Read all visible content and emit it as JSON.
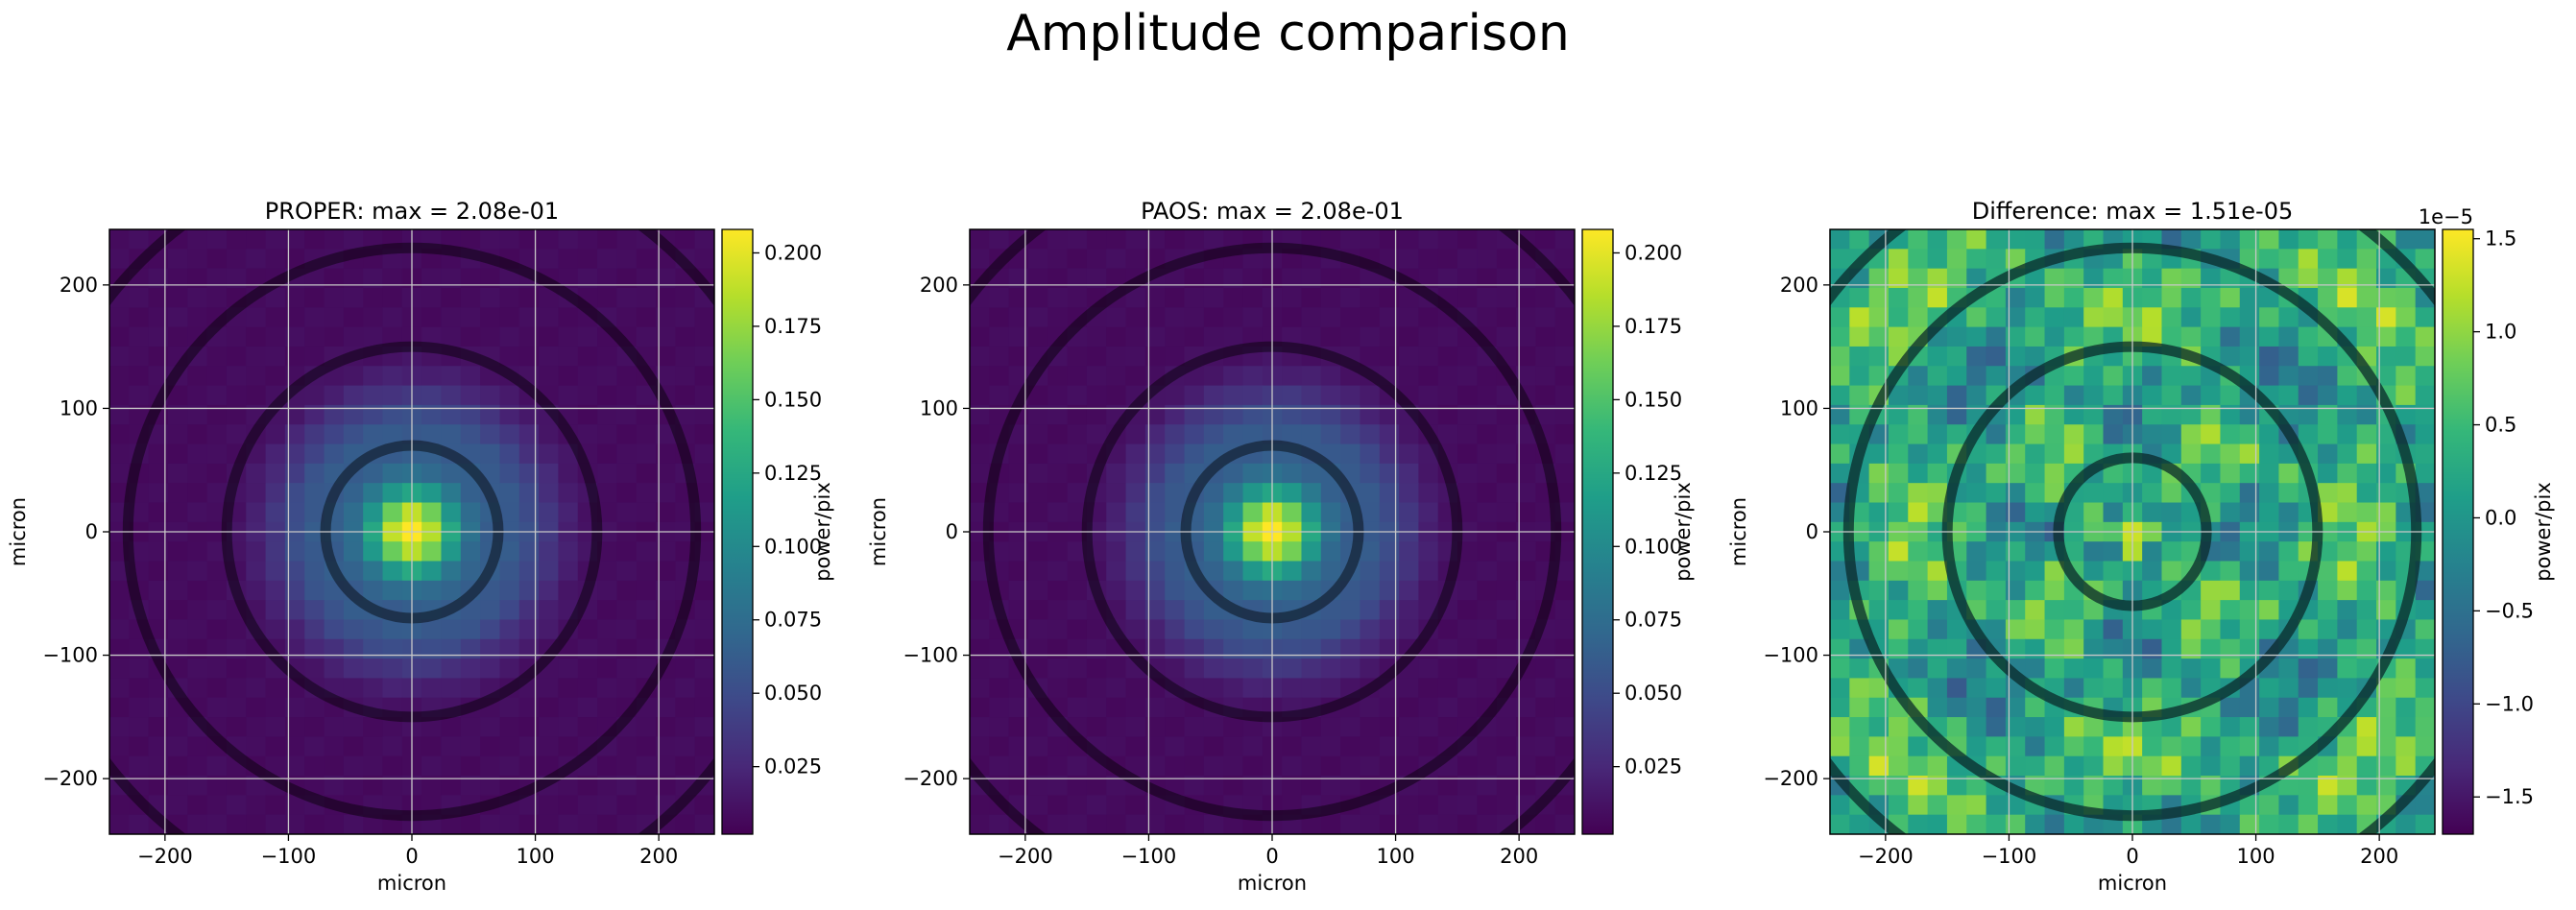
{
  "suptitle": "Amplitude comparison",
  "colors": {
    "viridis": [
      "#440154",
      "#482878",
      "#3e4989",
      "#31688e",
      "#26828e",
      "#1f9e89",
      "#35b779",
      "#6ece58",
      "#b5de2b",
      "#fde725"
    ]
  },
  "chart_data": [
    {
      "type": "heatmap",
      "title": "PROPER: max = 2.08e-01",
      "xlabel": "micron",
      "ylabel": "micron",
      "xlim": [
        -245,
        245
      ],
      "ylim": [
        -245,
        245
      ],
      "xticks": [
        -200,
        -100,
        0,
        100,
        200
      ],
      "xtick_labels": [
        "−200",
        "−100",
        "0",
        "100",
        "200"
      ],
      "yticks": [
        -200,
        -100,
        0,
        100,
        200
      ],
      "ytick_labels": [
        "−200",
        "−100",
        "0",
        "100",
        "200"
      ],
      "grid": true,
      "colormap": "viridis",
      "colorbar": {
        "label": "power/pix",
        "range": [
          0.002,
          0.208
        ],
        "ticks": [
          0.025,
          0.05,
          0.075,
          0.1,
          0.125,
          0.15,
          0.175,
          0.2
        ],
        "tick_labels": [
          "0.025",
          "0.050",
          "0.075",
          "0.100",
          "0.125",
          "0.150",
          "0.175",
          "0.200"
        ],
        "offset_label": ""
      },
      "peak": 0.208,
      "dark_rings_radius": [
        70,
        150,
        230,
        310
      ],
      "ring_color": "#000000",
      "ring_opacity": 0.45
    },
    {
      "type": "heatmap",
      "title": "PAOS: max = 2.08e-01",
      "xlabel": "micron",
      "ylabel": "micron",
      "xlim": [
        -245,
        245
      ],
      "ylim": [
        -245,
        245
      ],
      "xticks": [
        -200,
        -100,
        0,
        100,
        200
      ],
      "xtick_labels": [
        "−200",
        "−100",
        "0",
        "100",
        "200"
      ],
      "yticks": [
        -200,
        -100,
        0,
        100,
        200
      ],
      "ytick_labels": [
        "−200",
        "−100",
        "0",
        "100",
        "200"
      ],
      "grid": true,
      "colormap": "viridis",
      "colorbar": {
        "label": "power/pix",
        "range": [
          0.002,
          0.208
        ],
        "ticks": [
          0.025,
          0.05,
          0.075,
          0.1,
          0.125,
          0.15,
          0.175,
          0.2
        ],
        "tick_labels": [
          "0.025",
          "0.050",
          "0.075",
          "0.100",
          "0.125",
          "0.150",
          "0.175",
          "0.200"
        ],
        "offset_label": ""
      },
      "peak": 0.208,
      "dark_rings_radius": [
        70,
        150,
        230,
        310
      ],
      "ring_color": "#000000",
      "ring_opacity": 0.45
    },
    {
      "type": "heatmap",
      "title": "Difference: max = 1.51e-05",
      "xlabel": "micron",
      "ylabel": "micron",
      "xlim": [
        -245,
        245
      ],
      "ylim": [
        -245,
        245
      ],
      "xticks": [
        -200,
        -100,
        0,
        100,
        200
      ],
      "xtick_labels": [
        "−200",
        "−100",
        "0",
        "100",
        "200"
      ],
      "yticks": [
        -200,
        -100,
        0,
        100,
        200
      ],
      "ytick_labels": [
        "−200",
        "−100",
        "0",
        "100",
        "200"
      ],
      "grid": true,
      "colormap": "viridis",
      "colorbar": {
        "label": "power/pix",
        "range": [
          -1.7,
          1.55
        ],
        "ticks": [
          -1.5,
          -1.0,
          -0.5,
          0.0,
          0.5,
          1.0,
          1.5
        ],
        "tick_labels": [
          "−1.5",
          "−1.0",
          "−0.5",
          "0.0",
          "0.5",
          "1.0",
          "1.5"
        ],
        "offset_label": "1e−5"
      },
      "peak": 1.51,
      "dark_rings_radius": [
        60,
        150,
        230,
        310
      ],
      "ring_color": "#0a2a2a",
      "ring_opacity": 0.75
    }
  ]
}
